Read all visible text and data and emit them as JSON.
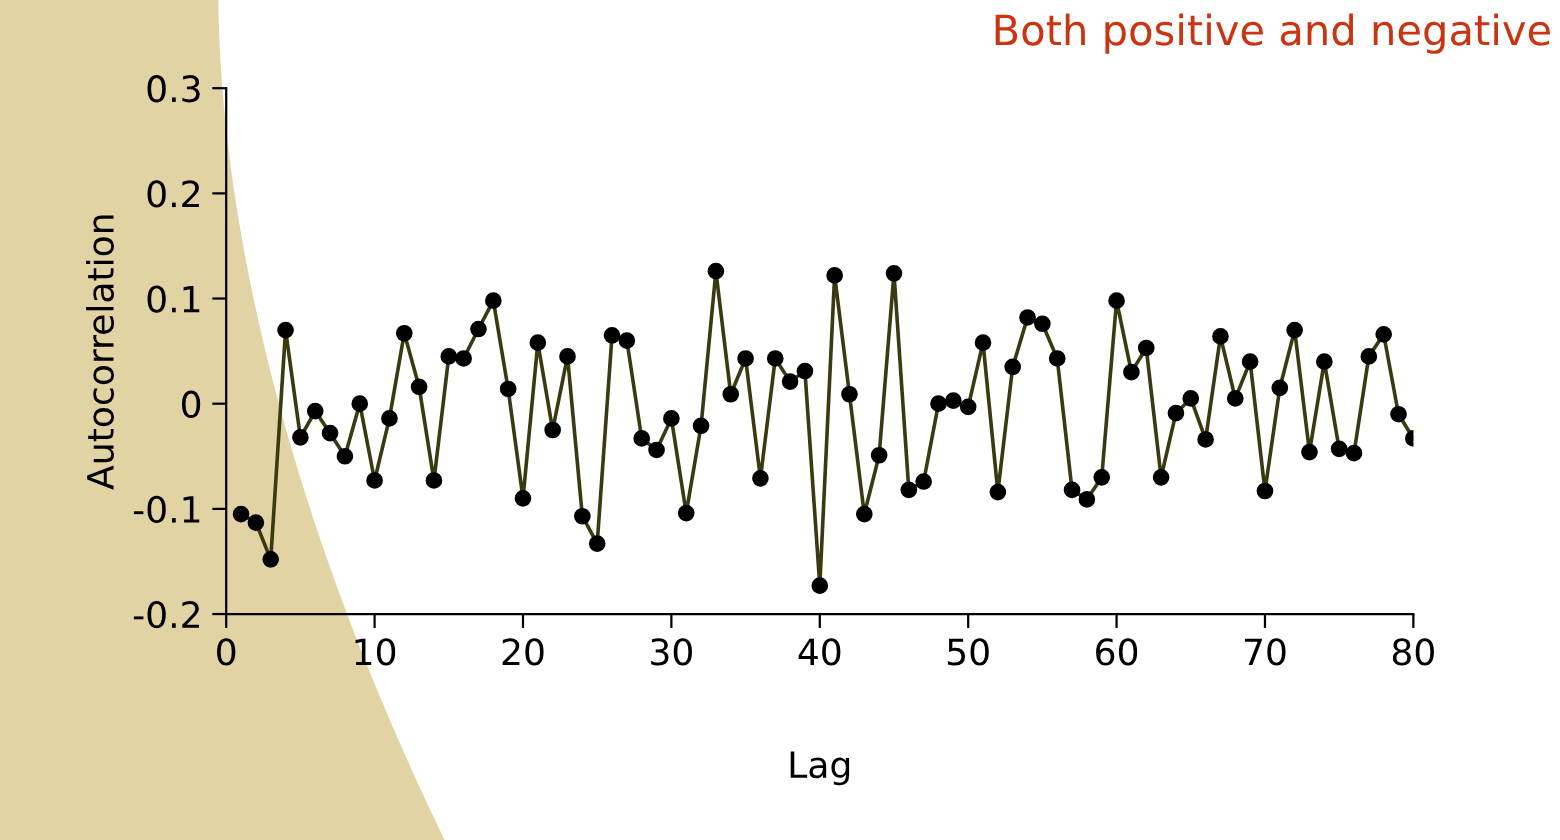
{
  "chart_data": {
    "type": "line",
    "title": "Both positive and negative",
    "xlabel": "Lag",
    "ylabel": "Autocorrelation",
    "x": [
      1,
      2,
      3,
      4,
      5,
      6,
      7,
      8,
      9,
      10,
      11,
      12,
      13,
      14,
      15,
      16,
      17,
      18,
      19,
      20,
      21,
      22,
      23,
      24,
      25,
      26,
      27,
      28,
      29,
      30,
      31,
      32,
      33,
      34,
      35,
      36,
      37,
      38,
      39,
      40,
      41,
      42,
      43,
      44,
      45,
      46,
      47,
      48,
      49,
      50,
      51,
      52,
      53,
      54,
      55,
      56,
      57,
      58,
      59,
      60,
      61,
      62,
      63,
      64,
      65,
      66,
      67,
      68,
      69,
      70,
      71,
      72,
      73,
      74,
      75,
      76,
      77,
      78,
      79,
      80
    ],
    "series": [
      {
        "color": "#3a3a10",
        "values": [
          -0.105,
          -0.113,
          -0.148,
          0.07,
          -0.032,
          -0.007,
          -0.028,
          -0.05,
          0.0,
          -0.073,
          -0.014,
          0.067,
          0.016,
          -0.073,
          0.045,
          0.043,
          0.071,
          0.098,
          0.014,
          -0.09,
          0.058,
          -0.025,
          0.045,
          -0.107,
          -0.133,
          0.065,
          0.06,
          -0.033,
          -0.044,
          -0.014,
          -0.104,
          -0.021,
          0.126,
          0.009,
          0.043,
          -0.071,
          0.043,
          0.021,
          0.031,
          -0.173,
          0.122,
          0.009,
          -0.105,
          -0.049,
          0.124,
          -0.082,
          -0.074,
          0.0,
          0.003,
          -0.003,
          0.058,
          -0.084,
          0.035,
          0.082,
          0.076,
          0.043,
          -0.082,
          -0.091,
          -0.07,
          0.098,
          0.03,
          0.053,
          -0.07,
          -0.009,
          0.005,
          -0.034,
          0.064,
          0.005,
          0.04,
          -0.083,
          0.015,
          0.07,
          -0.046,
          0.04,
          -0.043,
          -0.047,
          0.045,
          0.066,
          -0.01,
          -0.033
        ]
      }
    ],
    "xlim": [
      0,
      80
    ],
    "xticks": [
      0,
      10,
      20,
      30,
      40,
      50,
      60,
      70,
      80
    ],
    "ylim": [
      -0.2,
      0.3
    ],
    "yticks": [
      -0.2,
      -0.1,
      0,
      0.1,
      0.2,
      0.3
    ],
    "marker": "circle",
    "line_style": "solid",
    "grid": false,
    "legend": false
  }
}
